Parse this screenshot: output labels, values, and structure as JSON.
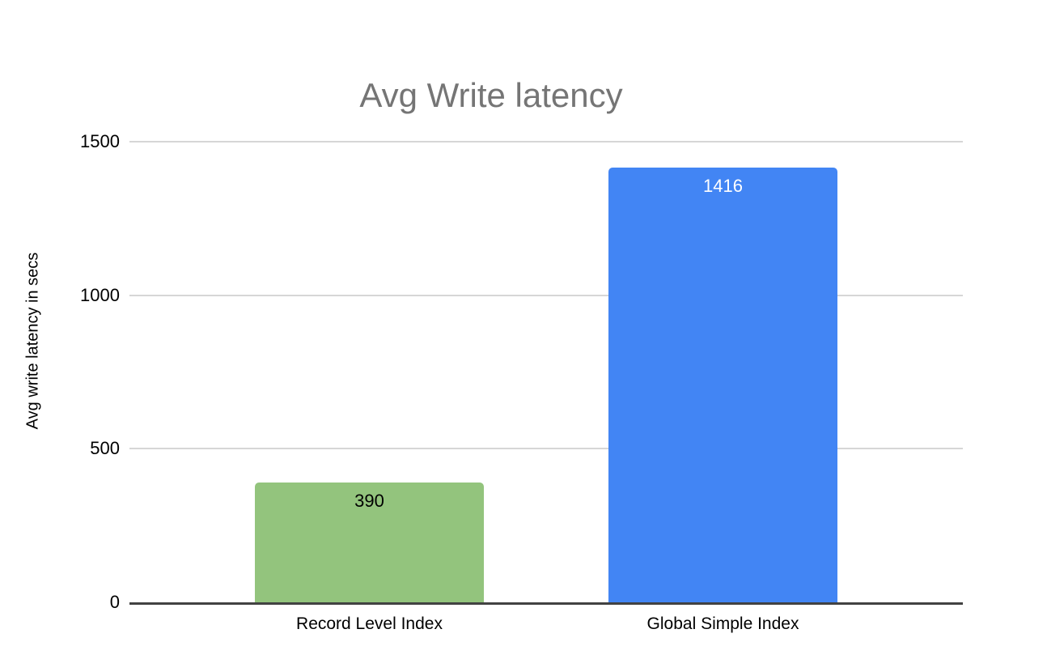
{
  "chart_data": {
    "type": "bar",
    "title": "Avg Write latency",
    "xlabel": "",
    "ylabel": "Avg write latency in secs",
    "categories": [
      "Record Level Index",
      "Global Simple Index"
    ],
    "values": [
      390,
      1416
    ],
    "value_labels": [
      "390",
      "1416"
    ],
    "bar_colors": [
      "#93c47d",
      "#4285f4"
    ],
    "value_label_colors": [
      "#000000",
      "#ffffff"
    ],
    "ylim": [
      0,
      1500
    ],
    "yticks": [
      "0",
      "500",
      "1000",
      "1500"
    ],
    "grid": true,
    "legend_position": "none",
    "colors": {
      "title_text": "#757575",
      "axis_text": "#000000",
      "gridline": "#d6d6d6",
      "axis_line": "#424242",
      "background": "#ffffff"
    }
  }
}
